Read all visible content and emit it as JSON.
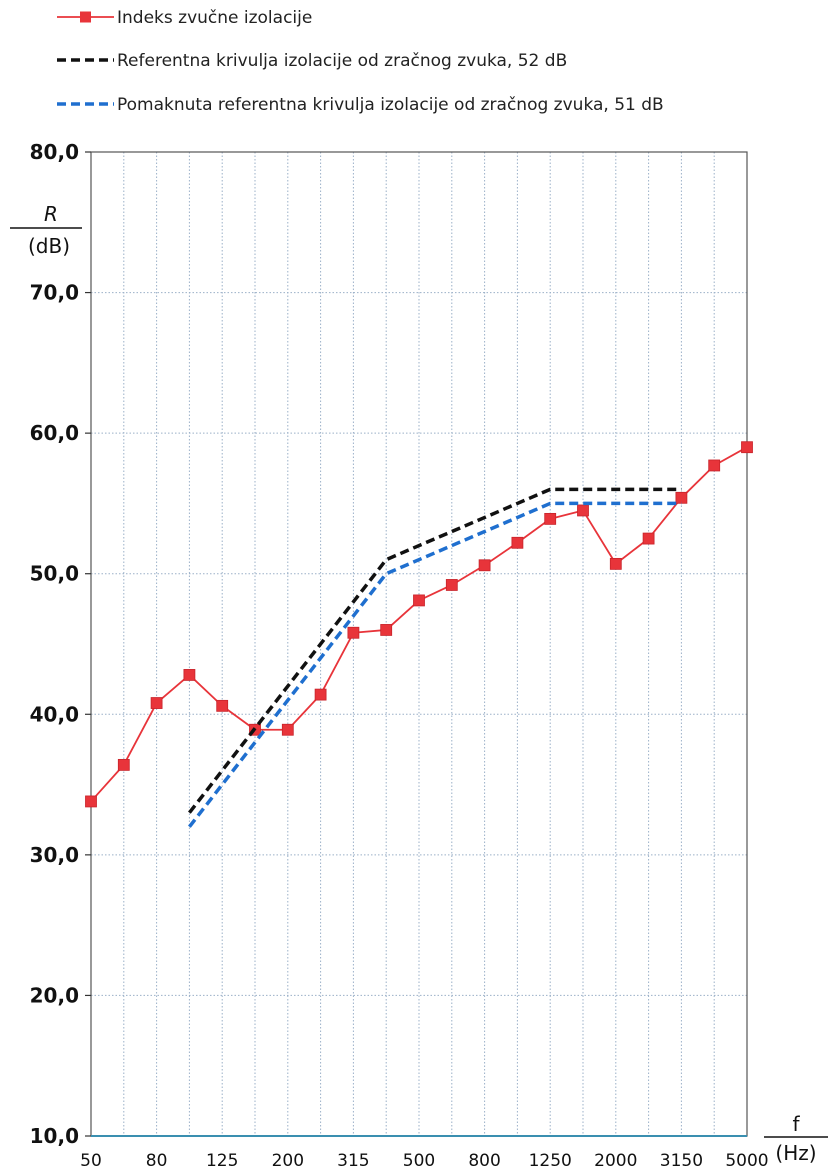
{
  "chart_data": {
    "type": "line",
    "ylabel": "R",
    "yunit": "(dB)",
    "xlabel": "f",
    "xunit": "(Hz)",
    "ylim": [
      10,
      80
    ],
    "yticks": [
      "10,0",
      "20,0",
      "30,0",
      "40,0",
      "50,0",
      "60,0",
      "70,0",
      "80,0"
    ],
    "x": [
      50,
      63,
      80,
      100,
      125,
      160,
      200,
      250,
      315,
      400,
      500,
      630,
      800,
      1000,
      1250,
      1600,
      2000,
      2500,
      3150,
      4000,
      5000
    ],
    "xtick_labels": [
      "50",
      "80",
      "125",
      "200",
      "315",
      "500",
      "800",
      "1250",
      "2000",
      "3150",
      "5000"
    ],
    "grid": true,
    "legend_position": "top",
    "series": [
      {
        "name": "Indeks zvučne izolacije",
        "color": "#e8343a",
        "style": "solid-square-markers",
        "x": [
          50,
          63,
          80,
          100,
          125,
          160,
          200,
          250,
          315,
          400,
          500,
          630,
          800,
          1000,
          1250,
          1600,
          2000,
          2500,
          3150,
          4000,
          5000
        ],
        "values": [
          33.8,
          36.4,
          40.8,
          42.8,
          40.6,
          38.9,
          38.9,
          41.4,
          45.8,
          46.0,
          48.1,
          49.2,
          50.6,
          52.2,
          53.9,
          54.5,
          50.7,
          52.5,
          55.4,
          57.7,
          59.0
        ]
      },
      {
        "name": "Referentna krivulja izolacije od zračnog zvuka, 52 dB",
        "color": "#111111",
        "style": "dashed",
        "x": [
          100,
          400,
          1250,
          3150
        ],
        "values": [
          33,
          51,
          56,
          56
        ]
      },
      {
        "name": "Pomaknuta referentna krivulja izolacije od zračnog zvuka, 51 dB",
        "color": "#1f6fcf",
        "style": "dashed",
        "x": [
          100,
          400,
          1250,
          3150
        ],
        "values": [
          32,
          50,
          55,
          55
        ]
      }
    ]
  }
}
